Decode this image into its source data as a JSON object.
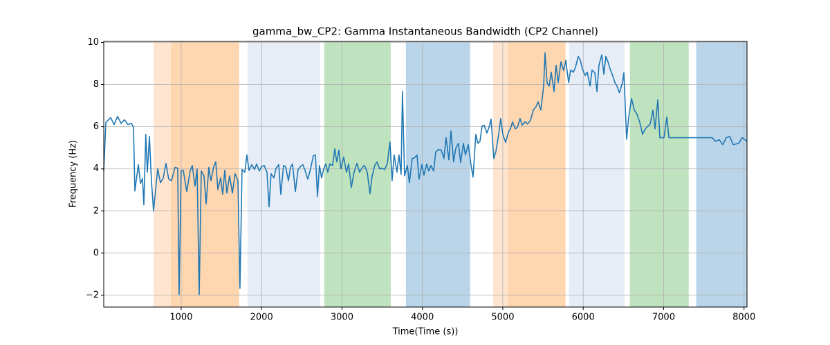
{
  "chart_data": {
    "type": "line",
    "title": "gamma_bw_CP2: Gamma Instantaneous Bandwidth (CP2 Channel)",
    "x_label": "Time(Time (s))",
    "y_label": "Frequency (Hz)",
    "xlim": [
      37,
      8037
    ],
    "ylim": [
      -2.56,
      10.05
    ],
    "xticks": [
      1000,
      2000,
      3000,
      4000,
      5000,
      6000,
      7000,
      8000
    ],
    "yticks": [
      {
        "value": -2,
        "label": "−2"
      },
      0,
      2,
      4,
      6,
      8,
      10
    ],
    "grid": true,
    "spans": [
      {
        "start": 656,
        "end": 870,
        "color": "#ffe5cf"
      },
      {
        "start": 870,
        "end": 1722,
        "color": "#fed6b0"
      },
      {
        "start": 1825,
        "end": 2728,
        "color": "#e6edf7"
      },
      {
        "start": 2780,
        "end": 3606,
        "color": "#bfe2bf"
      },
      {
        "start": 3795,
        "end": 4594,
        "color": "#bad5e9"
      },
      {
        "start": 4879,
        "end": 5060,
        "color": "#ffe5cf"
      },
      {
        "start": 5060,
        "end": 5780,
        "color": "#fed6b0"
      },
      {
        "start": 5824,
        "end": 6512,
        "color": "#e6edf7"
      },
      {
        "start": 6581,
        "end": 7312,
        "color": "#bfe2bf"
      },
      {
        "start": 7405,
        "end": 8037,
        "color": "#bad5e9"
      }
    ],
    "series": [
      {
        "color": "#1f77b4",
        "x": [
          37,
          63,
          123,
          166,
          209,
          252,
          295,
          338,
          381,
          407,
          424,
          467,
          493,
          519,
          536,
          560,
          579,
          605,
          630,
          656,
          708,
          742,
          777,
          811,
          845,
          880,
          923,
          957,
          974,
          1000,
          1026,
          1069,
          1112,
          1138,
          1172,
          1198,
          1224,
          1250,
          1284,
          1310,
          1344,
          1370,
          1405,
          1430,
          1456,
          1491,
          1516,
          1542,
          1568,
          1602,
          1637,
          1671,
          1706,
          1731,
          1757,
          1791,
          1817,
          1843,
          1878,
          1912,
          1938,
          1972,
          1998,
          2032,
          2067,
          2093,
          2118,
          2153,
          2179,
          2213,
          2239,
          2273,
          2299,
          2334,
          2359,
          2385,
          2420,
          2454,
          2488,
          2514,
          2548,
          2574,
          2609,
          2643,
          2669,
          2695,
          2720,
          2746,
          2772,
          2798,
          2824,
          2849,
          2884,
          2910,
          2935,
          2961,
          2987,
          3021,
          3056,
          3082,
          3116,
          3150,
          3185,
          3219,
          3253,
          3279,
          3314,
          3348,
          3374,
          3408,
          3434,
          3469,
          3494,
          3529,
          3563,
          3597,
          3623,
          3649,
          3683,
          3709,
          3735,
          3752,
          3778,
          3813,
          3838,
          3873,
          3899,
          3933,
          3959,
          3993,
          4019,
          4054,
          4079,
          4105,
          4140,
          4165,
          4200,
          4234,
          4268,
          4294,
          4329,
          4355,
          4389,
          4415,
          4449,
          4475,
          4510,
          4535,
          4570,
          4604,
          4630,
          4664,
          4690,
          4716,
          4742,
          4768,
          4802,
          4828,
          4854,
          4888,
          4914,
          4949,
          4974,
          5000,
          5035,
          5069,
          5095,
          5121,
          5155,
          5181,
          5215,
          5241,
          5276,
          5310,
          5344,
          5379,
          5413,
          5439,
          5473,
          5508,
          5525,
          5551,
          5577,
          5602,
          5637,
          5663,
          5689,
          5723,
          5757,
          5783,
          5818,
          5843,
          5878,
          5904,
          5938,
          5964,
          5990,
          6024,
          6050,
          6085,
          6110,
          6145,
          6171,
          6196,
          6231,
          6257,
          6282,
          6308,
          6334,
          6360,
          6394,
          6420,
          6450,
          6489,
          6506,
          6540,
          6566,
          6601,
          6635,
          6669,
          6704,
          6738,
          6773,
          6807,
          6833,
          6867,
          6893,
          6928,
          6953,
          7005,
          7040,
          7066,
          7349,
          7607,
          7641,
          7693,
          7736,
          7779,
          7822,
          7865,
          7934,
          7977,
          8037
        ],
        "values": [
          3.9,
          6.2,
          6.43,
          6.1,
          6.49,
          6.16,
          6.33,
          6.1,
          6.16,
          5.97,
          2.95,
          4.2,
          3.31,
          3.54,
          2.3,
          5.64,
          3.84,
          5.54,
          3.44,
          2.0,
          4.0,
          3.34,
          3.57,
          4.26,
          3.51,
          3.44,
          4.07,
          4.03,
          -1.97,
          3.9,
          3.93,
          2.92,
          3.9,
          4.16,
          3.18,
          4.0,
          -1.97,
          3.9,
          3.67,
          2.33,
          4.07,
          3.44,
          4.1,
          4.33,
          3.02,
          3.57,
          2.79,
          3.93,
          2.85,
          3.67,
          2.85,
          3.77,
          3.44,
          -1.67,
          3.97,
          3.84,
          4.66,
          3.93,
          4.2,
          3.97,
          4.23,
          3.9,
          4.1,
          4.16,
          3.84,
          2.2,
          3.77,
          3.57,
          4.03,
          4.2,
          2.79,
          4.16,
          4.1,
          3.44,
          4.07,
          4.23,
          2.92,
          3.97,
          4.13,
          4.2,
          3.84,
          3.51,
          4.0,
          4.62,
          4.66,
          2.69,
          4.16,
          3.57,
          4.0,
          4.23,
          3.84,
          4.23,
          4.16,
          4.95,
          4.33,
          4.89,
          4.0,
          4.56,
          3.84,
          4.23,
          3.11,
          3.84,
          4.26,
          3.84,
          4.07,
          4.16,
          3.84,
          2.82,
          3.64,
          4.16,
          4.33,
          4.0,
          4.03,
          3.97,
          4.23,
          5.28,
          3.44,
          4.66,
          3.84,
          4.66,
          3.74,
          7.67,
          3.67,
          4.16,
          3.34,
          4.49,
          4.52,
          4.66,
          3.51,
          4.2,
          3.7,
          4.23,
          3.9,
          4.16,
          3.9,
          4.79,
          4.92,
          4.89,
          4.49,
          5.48,
          4.43,
          5.8,
          4.33,
          4.98,
          5.21,
          4.3,
          5.21,
          4.66,
          5.15,
          4.2,
          3.61,
          5.64,
          5.21,
          5.31,
          6.03,
          6.07,
          5.7,
          5.97,
          6.36,
          4.49,
          4.82,
          5.64,
          6.39,
          5.64,
          5.25,
          5.74,
          5.9,
          6.23,
          5.9,
          5.97,
          6.39,
          6.07,
          6.23,
          6.13,
          6.3,
          6.79,
          6.95,
          7.18,
          6.79,
          7.93,
          9.51,
          8.07,
          7.93,
          8.59,
          7.67,
          8.92,
          8.1,
          9.08,
          8.66,
          9.15,
          8.1,
          8.69,
          8.59,
          8.82,
          9.34,
          9.15,
          8.75,
          8.43,
          8.59,
          7.93,
          8.69,
          8.56,
          7.67,
          8.92,
          9.41,
          8.49,
          9.34,
          9.08,
          8.75,
          8.49,
          8.1,
          7.93,
          7.61,
          8.1,
          8.56,
          5.41,
          6.46,
          7.34,
          6.79,
          6.59,
          6.2,
          5.64,
          5.9,
          6.03,
          6.13,
          6.79,
          5.9,
          7.28,
          5.48,
          5.48,
          6.46,
          5.48,
          5.48,
          5.48,
          5.31,
          5.38,
          5.15,
          5.48,
          5.54,
          5.15,
          5.21,
          5.48,
          5.31
        ]
      }
    ]
  }
}
